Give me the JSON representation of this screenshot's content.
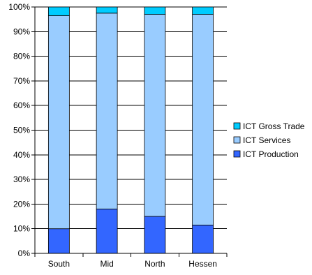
{
  "chart_data": {
    "type": "bar",
    "stacked": true,
    "stacking": "percent",
    "categories": [
      "South",
      "Mid",
      "North",
      "Hessen"
    ],
    "series": [
      {
        "name": "ICT Production",
        "values": [
          10,
          18,
          15,
          11.5
        ],
        "color": "#3366ff"
      },
      {
        "name": "ICT Services",
        "values": [
          86.5,
          79.5,
          82,
          85.5
        ],
        "color": "#99ccff"
      },
      {
        "name": "ICT Gross Trade",
        "values": [
          3.5,
          2.5,
          3,
          3
        ],
        "color": "#00ccff"
      }
    ],
    "yticks": [
      "0%",
      "10%",
      "20%",
      "30%",
      "40%",
      "50%",
      "60%",
      "70%",
      "80%",
      "90%",
      "100%"
    ],
    "ylim": [
      0,
      100
    ],
    "grid": true,
    "legend": "right",
    "legend_order": [
      "ICT Gross Trade",
      "ICT Services",
      "ICT Production"
    ]
  }
}
